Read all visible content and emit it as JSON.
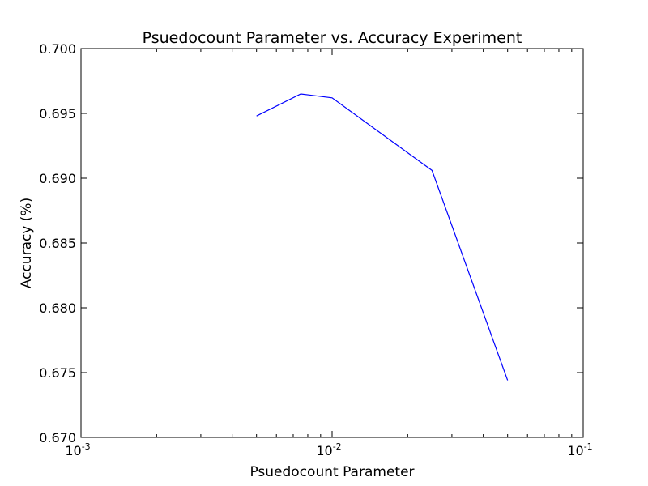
{
  "chart_data": {
    "type": "line",
    "title": "Psuedocount Parameter vs. Accuracy Experiment",
    "xlabel": "Psuedocount Parameter",
    "ylabel": "Accuracy (%)",
    "x_scale": "log",
    "xlim": [
      0.001,
      0.1
    ],
    "ylim": [
      0.67,
      0.7
    ],
    "x_ticks": [
      {
        "value": 0.001,
        "base": "10",
        "exp": "-3"
      },
      {
        "value": 0.01,
        "base": "10",
        "exp": "-2"
      },
      {
        "value": 0.1,
        "base": "10",
        "exp": "-1"
      }
    ],
    "y_ticks": [
      {
        "value": 0.67,
        "label": "0.670"
      },
      {
        "value": 0.675,
        "label": "0.675"
      },
      {
        "value": 0.68,
        "label": "0.680"
      },
      {
        "value": 0.685,
        "label": "0.685"
      },
      {
        "value": 0.69,
        "label": "0.690"
      },
      {
        "value": 0.695,
        "label": "0.695"
      },
      {
        "value": 0.7,
        "label": "0.700"
      }
    ],
    "grid": false,
    "series": [
      {
        "color": "#0000ff",
        "x": [
          0.005,
          0.0075,
          0.01,
          0.025,
          0.05
        ],
        "y": [
          0.6948,
          0.6965,
          0.6962,
          0.6906,
          0.6744
        ]
      }
    ]
  }
}
